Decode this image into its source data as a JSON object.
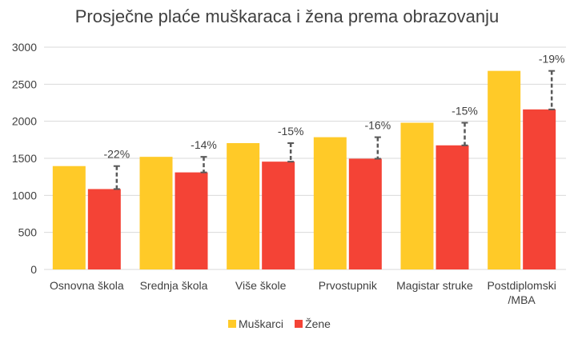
{
  "chart_data": {
    "type": "bar",
    "title": "Prosječne plaće muškaraca i žena prema obrazovanju",
    "categories": [
      [
        "Osnovna škola"
      ],
      [
        "Srednja škola"
      ],
      [
        "Više škole"
      ],
      [
        "Prvostupnik"
      ],
      [
        "Magistar struke"
      ],
      [
        "Postdiplomski",
        "/MBA"
      ]
    ],
    "series": [
      {
        "name": "Muškarci",
        "color": "#FFCA28",
        "values": [
          1395,
          1520,
          1705,
          1785,
          1980,
          2680
        ]
      },
      {
        "name": "Žene",
        "color": "#F44336",
        "values": [
          1085,
          1310,
          1455,
          1495,
          1675,
          2160
        ]
      }
    ],
    "gap_labels": [
      "-22%",
      "-14%",
      "-15%",
      "-16%",
      "-15%",
      "-19%"
    ],
    "ylim": [
      0,
      3000
    ],
    "yticks": [
      0,
      500,
      1000,
      1500,
      2000,
      2500,
      3000
    ],
    "grid": true,
    "legend": "bottom",
    "xlabel": "",
    "ylabel": ""
  }
}
